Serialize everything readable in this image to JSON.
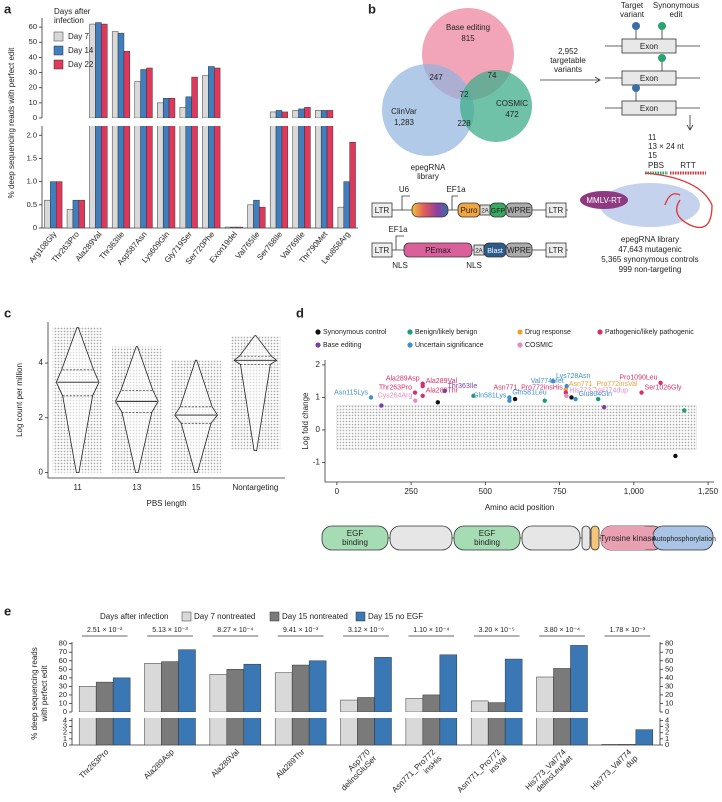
{
  "panel_labels": [
    "a",
    "b",
    "c",
    "d",
    "e"
  ],
  "chart_data": [
    {
      "type": "bar",
      "ylabel": "% deep sequencing reads with perfect edit",
      "legend_title": [
        "Days after",
        "infection"
      ],
      "legend": "upper-left",
      "categories": [
        "Arg108Gly",
        "Thr263Pro",
        "Ala289Val",
        "Thr363Ile",
        "Asp587Asn",
        "Lys609Gln",
        "Gly719Ser",
        "Ser720Phe",
        "Exon19del",
        "Val765Ile",
        "Ser768Ile",
        "Val769Ile",
        "Thr790Met",
        "Leu858Arg"
      ],
      "series": [
        {
          "name": "Day 7",
          "color": "#d9d9d9",
          "values": [
            0.6,
            0.4,
            62,
            57,
            24,
            10,
            7,
            28,
            0.02,
            0.5,
            4,
            5,
            5,
            0.45
          ]
        },
        {
          "name": "Day 14",
          "color": "#3f7fbf",
          "values": [
            1.0,
            0.6,
            63,
            56,
            32,
            13,
            14,
            34,
            0.02,
            0.6,
            5,
            6,
            5,
            1.0
          ]
        },
        {
          "name": "Day 22",
          "color": "#e0385a",
          "values": [
            1.0,
            0.6,
            62,
            44,
            33,
            13,
            27,
            33,
            0.02,
            0.45,
            4,
            7,
            5,
            1.85
          ]
        }
      ],
      "upper": {
        "ylim": [
          0,
          66
        ],
        "yticks": [
          0,
          10,
          20,
          30,
          40,
          50,
          60
        ]
      },
      "lower": {
        "ylim": [
          0,
          2.2
        ],
        "yticks": [
          0,
          0.5,
          {
            "value": 1,
            "label": "1.0"
          },
          1.5,
          {
            "value": 2,
            "label": "2.0"
          }
        ]
      }
    },
    {
      "type": "violin",
      "xlabel": "PBS length",
      "ylabel": "Log count per million",
      "color": "#bdbdbd",
      "categories": [
        "11",
        "13",
        "15",
        "Nontargeting"
      ],
      "median": [
        3.3,
        2.6,
        2.1,
        4.1
      ],
      "q1": [
        2.8,
        2.2,
        1.8,
        3.95
      ],
      "q3": [
        3.75,
        3.0,
        2.4,
        4.25
      ],
      "min": [
        0,
        0,
        0,
        0.8
      ],
      "max": [
        5.3,
        4.6,
        4.1,
        5.0
      ],
      "ylim": [
        -0.2,
        5.5
      ],
      "yticks": [
        0,
        2,
        4
      ]
    },
    {
      "type": "scatter",
      "xlabel": "Amino acid position",
      "ylabel": "Log fold change",
      "xlim": [
        -40,
        1270
      ],
      "xticks": [
        0,
        250,
        500,
        750,
        {
          "value": 1000,
          "label": "1,000"
        },
        {
          "value": 1250,
          "label": "1,250"
        }
      ],
      "ylim": [
        -1.6,
        2.15
      ],
      "yticks": [
        -1,
        0,
        1,
        2
      ],
      "cloud": {
        "color": "#bdbdbd",
        "x": [
          0,
          1210
        ],
        "y": [
          -0.6,
          0.75
        ]
      },
      "series": [
        {
          "name": "Synonymous control",
          "color": "#111111",
          "x": [
            340,
            600,
            790,
            1140
          ],
          "values": [
            0.85,
            0.95,
            1.0,
            -0.8
          ],
          "labels": [
            null,
            null,
            null,
            null
          ]
        },
        {
          "name": "Benign/likely benign",
          "color": "#1b9e77",
          "x": [
            460,
            700,
            880,
            1170
          ],
          "values": [
            1.05,
            0.9,
            0.95,
            0.6
          ],
          "labels": [
            null,
            null,
            null,
            null
          ]
        },
        {
          "name": "Drug response",
          "color": "#f0a030",
          "x": [
            771
          ],
          "values": [
            1.25
          ],
          "labels": [
            "Asn771_Pro772insVal"
          ]
        },
        {
          "name": "Pathogenic/likely pathogenic",
          "color": "#d62f6a",
          "x": [
            263,
            289,
            289,
            289,
            771,
            1026,
            1090
          ],
          "values": [
            1.15,
            1.35,
            1.42,
            1.05,
            1.15,
            1.15,
            1.45
          ],
          "labels": [
            "Thr263Pro",
            "Ala289Val",
            "Ala289Asp",
            "Ala289Thr",
            "Asn771_Pro772insHis",
            "Ser1026Gly",
            "Pro1090Leu"
          ]
        },
        {
          "name": "Base editing",
          "color": "#7b3fa0",
          "x": [
            363,
            150,
            900
          ],
          "values": [
            1.2,
            0.75,
            0.7
          ],
          "labels": [
            "Thr363Ile",
            null,
            null
          ]
        },
        {
          "name": "Uncertain significance",
          "color": "#3d8fd0",
          "x": [
            115,
            581,
            581,
            728,
            774,
            804
          ],
          "values": [
            1.0,
            1.0,
            0.9,
            1.5,
            1.35,
            0.95
          ],
          "labels": [
            "Asn115Lys",
            "Gln581Leu",
            "Gln581Lys",
            "Lys728Asn",
            "Val774Met",
            "Glu804Gln"
          ]
        },
        {
          "name": "COSMIC",
          "color": "#e88ac8",
          "x": [
            264,
            773
          ],
          "values": [
            0.9,
            1.05
          ],
          "labels": [
            "Cys264Arg",
            "His773_Val774dup"
          ]
        }
      ]
    },
    {
      "type": "bar",
      "ylabel": [
        "% deep sequencing reads",
        "with perfect edit"
      ],
      "legend_title": "Days after infection",
      "legend": "top",
      "categories": [
        [
          "Thr263Pro"
        ],
        [
          "Ala289Asp"
        ],
        [
          "Ala289Val"
        ],
        [
          "Ala289Thr"
        ],
        [
          "Asp770",
          "delinsGluSer"
        ],
        [
          "Asn771_Pro772",
          "insHis"
        ],
        [
          "Asn771_Pro772",
          "insVal"
        ],
        [
          "His773_Val774",
          "delinsLeuMet"
        ],
        [
          "His773_Val774",
          "dup"
        ]
      ],
      "series": [
        {
          "name": "Day 7 nontreated",
          "color": "#d9d9d9",
          "values": [
            30,
            57,
            44,
            46,
            14,
            16,
            13,
            41,
            0.1
          ]
        },
        {
          "name": "Day 15 nontreated",
          "color": "#7a7a7a",
          "values": [
            35,
            59,
            50,
            55,
            17,
            20,
            11,
            51,
            0.1
          ]
        },
        {
          "name": "Day 15 no EGF",
          "color": "#3a78b5",
          "values": [
            40,
            73,
            56,
            60,
            64,
            67,
            62,
            78,
            2.5
          ]
        }
      ],
      "p_values": [
        "2.51 × 10⁻²",
        "5.13 × 10⁻³",
        "8.27 × 10⁻⁴",
        "9.41 × 10⁻³",
        "3.12 × 10⁻⁶",
        "1.10 × 10⁻⁴",
        "3.20 × 10⁻⁵",
        "3.80 × 10⁻⁴",
        "1.78 × 10⁻³"
      ],
      "upper": {
        "ylim": [
          0,
          82
        ],
        "yticks": [
          0,
          10,
          20,
          30,
          40,
          50,
          60,
          70,
          80
        ]
      },
      "lower": {
        "ylim": [
          0,
          4.4
        ],
        "yticks": [
          0,
          1,
          2,
          3,
          4
        ]
      }
    }
  ],
  "panel_b": {
    "sets": [
      {
        "name": "Base editing",
        "count": "815"
      },
      {
        "name": "ClinVar",
        "count": "1,283"
      },
      {
        "name": "COSMIC",
        "count": "472"
      }
    ],
    "overlaps": [
      "247",
      "74",
      "72",
      "228"
    ],
    "arrow_label": [
      "2,952",
      "targetable",
      "variants"
    ],
    "target_variant": [
      "Target",
      "variant"
    ],
    "synonymous_edit": [
      "Synonymous",
      "edit"
    ],
    "exon": "Exon",
    "lengths": [
      "11",
      "13 × 24 nt",
      "15"
    ],
    "pbs": "PBS",
    "rtt": "RTT",
    "mmlv": "MMLV-RT",
    "library": [
      "epegRNA library",
      "47,643 mutagenic",
      "5,365 synonymous controls",
      "999 non-targeting"
    ],
    "vector_1": [
      "LTR",
      "U6",
      [
        "epegRNA",
        "library"
      ],
      "EF1a",
      "Puro",
      "2A",
      "GFP",
      "WPRE",
      "LTR"
    ],
    "vector_2": [
      "LTR",
      "EF1a",
      "PEmax",
      "2A",
      "Blast",
      "WPRE",
      "LTR",
      "NLS",
      "NLS"
    ]
  },
  "protein_domains": [
    [
      "EGF",
      "binding"
    ],
    [
      "EGF",
      "binding"
    ],
    [
      "Tyrosine kinase"
    ],
    [
      "Autophosphorylation"
    ]
  ]
}
